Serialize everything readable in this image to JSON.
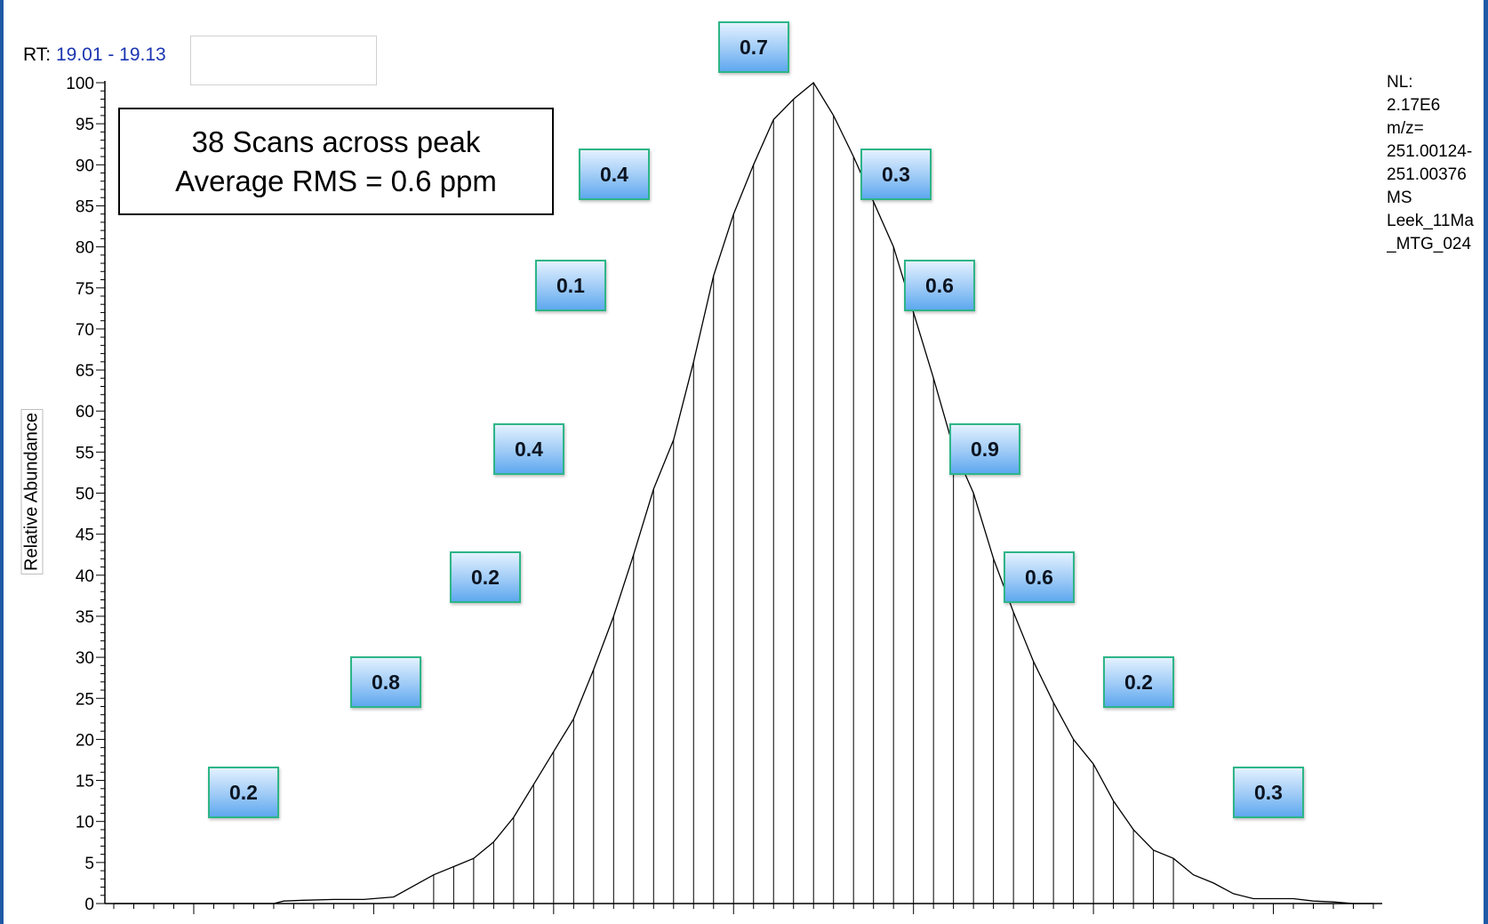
{
  "header": {
    "rt_prefix": "RT:",
    "rt_range": "19.01 - 19.13"
  },
  "annotation": {
    "line1": "38 Scans across peak",
    "line2": "Average RMS = 0.6 ppm"
  },
  "info": {
    "lines": [
      "NL:",
      "2.17E6",
      "m/z=",
      "251.00124-",
      "251.00376",
      "MS",
      "Leek_11Ma",
      "_MTG_024"
    ]
  },
  "colors": {
    "frame": "#1f5aa6",
    "rt_value": "#1a35b0",
    "badge_border": "#2db587",
    "badge_fill": "#9dcaf6"
  },
  "chart_data": {
    "type": "line",
    "ylabel": "Relative Abundance",
    "ylim": [
      0,
      100
    ],
    "yticks": [
      0,
      5,
      10,
      15,
      20,
      25,
      30,
      35,
      40,
      45,
      50,
      55,
      60,
      65,
      70,
      75,
      80,
      85,
      90,
      95,
      100
    ],
    "grid": false,
    "x_unit": "scan index (x tick labels cut off at image bottom)",
    "series": [
      {
        "values": [
          [
            0.0,
            0.0
          ],
          [
            4.0,
            0.0
          ],
          [
            8.0,
            0.0
          ],
          [
            8.5,
            0.3
          ],
          [
            9.5,
            0.4
          ],
          [
            11,
            0.5
          ],
          [
            12.5,
            0.5
          ],
          [
            14,
            0.8
          ],
          [
            16,
            3.5
          ],
          [
            17,
            4.5
          ],
          [
            18,
            5.5
          ],
          [
            19,
            7.5
          ],
          [
            20,
            10.5
          ],
          [
            21,
            14.5
          ],
          [
            22,
            18.5
          ],
          [
            23,
            22.5
          ],
          [
            24,
            28.5
          ],
          [
            25,
            35
          ],
          [
            26,
            42.5
          ],
          [
            27,
            50.5
          ],
          [
            28,
            56.5
          ],
          [
            29,
            66
          ],
          [
            30,
            76.5
          ],
          [
            31,
            84
          ],
          [
            32,
            90
          ],
          [
            33,
            95.5
          ],
          [
            34,
            98
          ],
          [
            35,
            100
          ],
          [
            36,
            96
          ],
          [
            37,
            91
          ],
          [
            38,
            85.5
          ],
          [
            39,
            80
          ],
          [
            40,
            72
          ],
          [
            41,
            64
          ],
          [
            42,
            55.5
          ],
          [
            43,
            50
          ],
          [
            44,
            42
          ],
          [
            45,
            35.5
          ],
          [
            46,
            29.5
          ],
          [
            47,
            24.5
          ],
          [
            48,
            20
          ],
          [
            49,
            17
          ],
          [
            50,
            12.5
          ],
          [
            51,
            9
          ],
          [
            52,
            6.5
          ],
          [
            53,
            5.5
          ],
          [
            54,
            3.5
          ],
          [
            55,
            2.5
          ],
          [
            56,
            1.2
          ],
          [
            57,
            0.6
          ],
          [
            58,
            0.6
          ],
          [
            59,
            0.6
          ],
          [
            60,
            0.3
          ],
          [
            61,
            0.2
          ],
          [
            62,
            0.0
          ],
          [
            63,
            0.0
          ]
        ]
      }
    ],
    "scan_stems": [
      16,
      17,
      18,
      19,
      20,
      21,
      22,
      23,
      24,
      25,
      26,
      27,
      28,
      29,
      30,
      31,
      32,
      33,
      34,
      35,
      36,
      37,
      38,
      39,
      40,
      41,
      42,
      43,
      44,
      45,
      46,
      47,
      48,
      49,
      50,
      51,
      52,
      53
    ],
    "ppm_labels": [
      {
        "text": "0.7"
      },
      {
        "text": "0.4"
      },
      {
        "text": "0.3"
      },
      {
        "text": "0.1"
      },
      {
        "text": "0.6"
      },
      {
        "text": "0.4"
      },
      {
        "text": "0.9"
      },
      {
        "text": "0.2"
      },
      {
        "text": "0.6"
      },
      {
        "text": "0.8"
      },
      {
        "text": "0.2"
      },
      {
        "text": "0.2"
      },
      {
        "text": "0.3"
      }
    ]
  }
}
